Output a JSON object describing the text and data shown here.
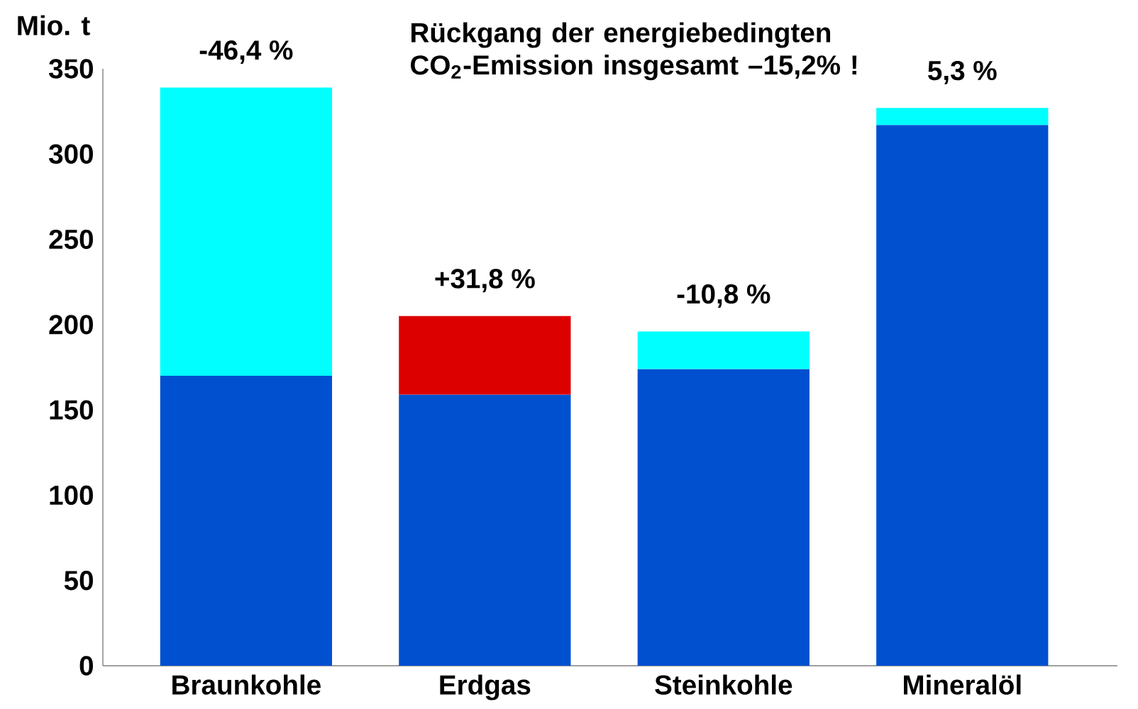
{
  "chart_data": {
    "type": "bar",
    "stacked": true,
    "title": "Rückgang der energiebedingten CO$_{2}$-Emission insgesamt –15,2% !",
    "ylabel": "Mio. t",
    "categories": [
      "Braunkohle",
      "Erdgas",
      "Steinkohle",
      "Mineralöl"
    ],
    "series": [
      {
        "color": "#0050d0",
        "values": [
          170,
          159,
          174,
          317
        ]
      },
      {
        "colors": [
          "#00ffff",
          "#dd0000",
          "#00ffff",
          "#00ffff"
        ],
        "values": [
          169,
          46,
          22,
          10
        ]
      }
    ],
    "ylim": [
      0,
      350
    ],
    "yticks": [
      0,
      50,
      100,
      150,
      200,
      250,
      300,
      350
    ],
    "grid": false,
    "annotations": [
      {
        "text": "-46,4 %",
        "x": "Braunkohle",
        "y": 339
      },
      {
        "text": "+31,8 %",
        "x": "Erdgas",
        "y": 205
      },
      {
        "text": "-10,8 %",
        "x": "Steinkohle",
        "y": 196
      },
      {
        "text": "5,3 %",
        "x": "Mineralöl",
        "y": 327
      }
    ]
  }
}
